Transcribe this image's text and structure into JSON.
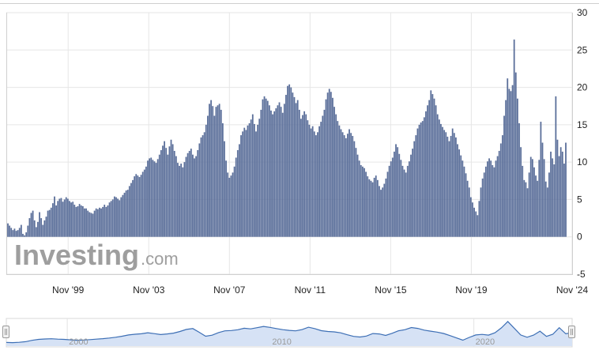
{
  "watermark": {
    "brand": "Investing",
    "suffix": ".com"
  },
  "colors": {
    "bar": "#5b6f9a",
    "grid": "#e6e6e6",
    "navigator_fill": "#d6e2f5",
    "navigator_line": "#3d6fb5"
  },
  "chart_data": {
    "type": "bar",
    "title": "",
    "xlabel": "",
    "ylabel": "",
    "ylim": [
      -5,
      30
    ],
    "y_ticks": [
      "30",
      "25",
      "20",
      "15",
      "10",
      "5",
      "0",
      "-5"
    ],
    "x_tick_labels": [
      "Nov '99",
      "Nov '03",
      "Nov '07",
      "Nov '11",
      "Nov '15",
      "Nov '19",
      "Nov '24"
    ],
    "grid": true,
    "y_axis_position": "right",
    "x_start": "1997-01",
    "x_end": "2024-11",
    "series": [
      {
        "values": [
          1.8,
          1.5,
          1.2,
          0.9,
          1.1,
          0.8,
          0.9,
          1.2,
          1.6,
          0.4,
          0.2,
          0.6,
          1.5,
          2.5,
          3.2,
          3.5,
          2.2,
          1.3,
          2.0,
          3.3,
          2.5,
          1.6,
          2.2,
          2.7,
          3.5,
          3.6,
          3.9,
          4.5,
          5.4,
          4.2,
          4.8,
          5.1,
          5.2,
          4.7,
          5.0,
          5.3,
          5.1,
          4.8,
          4.6,
          4.7,
          4.3,
          4.0,
          4.1,
          4.4,
          4.2,
          4.1,
          3.8,
          3.8,
          3.5,
          3.3,
          3.2,
          3.1,
          3.5,
          3.8,
          3.7,
          3.9,
          3.8,
          4.0,
          4.3,
          4.0,
          4.2,
          4.6,
          4.8,
          5.0,
          5.4,
          5.3,
          5.1,
          4.9,
          5.3,
          5.6,
          5.9,
          6.2,
          6.3,
          6.8,
          7.2,
          7.6,
          8.1,
          8.4,
          8.2,
          8.0,
          8.3,
          8.7,
          9.0,
          9.4,
          10.2,
          10.5,
          10.6,
          10.3,
          10.1,
          9.9,
          10.4,
          11.0,
          11.6,
          12.2,
          12.8,
          11.9,
          11.0,
          12.1,
          13.0,
          12.4,
          11.5,
          10.8,
          9.9,
          9.5,
          9.8,
          9.3,
          10.0,
          10.7,
          11.2,
          11.5,
          11.8,
          11.0,
          10.5,
          10.8,
          11.6,
          12.5,
          13.3,
          13.6,
          14.0,
          15.0,
          16.2,
          17.8,
          18.3,
          17.5,
          16.2,
          17.4,
          17.6,
          17.8,
          17.0,
          15.2,
          12.8,
          10.2,
          8.6,
          7.9,
          8.2,
          8.6,
          9.4,
          10.6,
          11.6,
          12.4,
          13.6,
          14.1,
          14.6,
          14.3,
          14.9,
          15.2,
          15.7,
          16.4,
          15.1,
          14.1,
          15.0,
          15.8,
          17.0,
          18.4,
          18.8,
          18.5,
          18.2,
          17.6,
          16.9,
          16.4,
          16.8,
          17.2,
          17.6,
          18.0,
          17.4,
          16.6,
          17.8,
          19.0,
          20.2,
          20.4,
          20.0,
          19.3,
          18.7,
          17.9,
          18.3,
          17.0,
          15.8,
          16.3,
          16.8,
          16.4,
          15.6,
          15.0,
          14.5,
          14.8,
          14.1,
          13.6,
          14.0,
          14.8,
          15.4,
          16.2,
          17.0,
          18.4,
          19.3,
          19.8,
          19.4,
          18.6,
          17.4,
          16.4,
          15.5,
          14.9,
          14.4,
          14.0,
          13.6,
          13.2,
          13.8,
          14.4,
          13.9,
          13.5,
          12.8,
          11.9,
          11.0,
          10.2,
          9.6,
          9.4,
          9.2,
          8.7,
          8.1,
          7.7,
          7.5,
          7.3,
          7.9,
          8.2,
          7.6,
          6.8,
          6.3,
          6.6,
          7.1,
          7.8,
          8.7,
          9.5,
          10.1,
          10.6,
          11.4,
          12.4,
          12.0,
          11.1,
          10.3,
          9.5,
          9.0,
          8.6,
          9.5,
          10.1,
          11.0,
          11.8,
          12.8,
          13.6,
          14.5,
          15.0,
          15.3,
          15.5,
          16.0,
          16.8,
          17.6,
          18.3,
          19.6,
          19.1,
          18.5,
          17.6,
          16.4,
          15.7,
          15.1,
          14.7,
          14.3,
          14.0,
          13.4,
          12.8,
          13.5,
          14.5,
          13.9,
          13.3,
          12.4,
          11.7,
          10.9,
          10.2,
          9.4,
          8.5,
          7.5,
          6.6,
          5.3,
          4.6,
          3.9,
          3.4,
          2.9,
          4.8,
          6.6,
          7.8,
          8.6,
          9.4,
          10.1,
          10.5,
          10.2,
          9.6,
          9.3,
          10.2,
          10.8,
          11.5,
          12.5,
          13.6,
          16.2,
          18.3,
          21.2,
          19.8,
          19.5,
          20.3,
          26.4,
          22.0,
          18.5,
          15.2,
          12.0,
          9.5,
          7.6,
          7.3,
          6.5,
          8.6,
          10.7,
          10.4,
          9.3,
          8.2,
          7.5,
          10.3,
          15.4,
          12.6,
          10.4,
          7.4,
          6.6,
          8.6,
          11.4,
          10.5,
          9.7,
          18.8,
          13.0,
          10.8,
          12.0,
          11.4,
          9.8,
          12.6
        ]
      }
    ]
  },
  "navigator": {
    "labels": [
      "2000",
      "2010",
      "2020"
    ],
    "values": [
      0.6,
      0.4,
      0.8,
      1.5,
      3.2,
      4.3,
      4.8,
      5.1,
      4.6,
      4.3,
      3.8,
      3.3,
      3.6,
      4.1,
      4.6,
      5.2,
      6.0,
      7.0,
      8.2,
      9.8,
      10.6,
      11.2,
      12.5,
      11.4,
      10.2,
      11.0,
      12.0,
      14.0,
      16.5,
      17.6,
      13.0,
      8.2,
      9.5,
      12.6,
      14.8,
      15.2,
      16.1,
      18.0,
      17.2,
      18.6,
      20.2,
      19.0,
      17.6,
      16.2,
      15.4,
      14.8,
      16.3,
      19.2,
      17.5,
      15.0,
      14.0,
      13.5,
      12.4,
      10.0,
      8.0,
      7.2,
      8.4,
      11.5,
      11.0,
      9.2,
      11.8,
      14.9,
      16.2,
      18.8,
      17.8,
      15.6,
      14.4,
      13.2,
      11.6,
      9.0,
      6.2,
      3.4,
      6.8,
      9.8,
      10.4,
      9.6,
      12.5,
      18.4,
      26.2,
      18.0,
      9.8,
      7.0,
      9.6,
      14.4,
      8.0,
      10.6,
      18.6,
      11.2,
      12.6
    ]
  }
}
